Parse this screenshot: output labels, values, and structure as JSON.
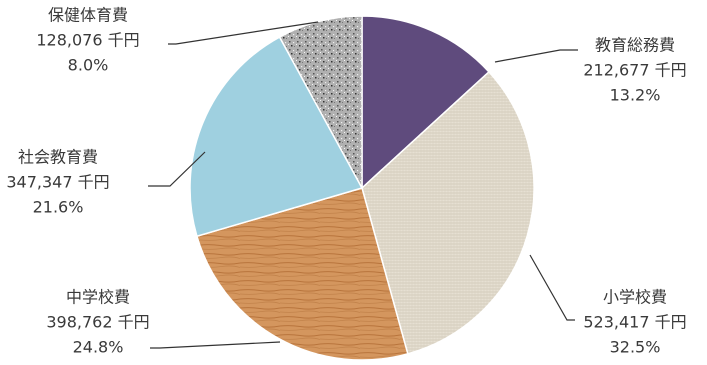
{
  "chart_data": {
    "type": "pie",
    "title": "",
    "unit": "千円",
    "slices": [
      {
        "label": "教育総務費",
        "value": 212677,
        "value_text": "212,677 千円",
        "percent": 13.2,
        "percent_text": "13.2%",
        "fill": "#5f4b7d",
        "texture": "none"
      },
      {
        "label": "小学校費",
        "value": 523417,
        "value_text": "523,417 千円",
        "percent": 32.5,
        "percent_text": "32.5%",
        "fill": "#e3ddd0",
        "texture": "canvas"
      },
      {
        "label": "中学校費",
        "value": 398762,
        "value_text": "398,762 千円",
        "percent": 24.8,
        "percent_text": "24.8%",
        "fill": "#d4965e",
        "texture": "wood"
      },
      {
        "label": "社会教育費",
        "value": 347347,
        "value_text": "347,347 千円",
        "percent": 21.6,
        "percent_text": "21.6%",
        "fill": "#9fd0e0",
        "texture": "none"
      },
      {
        "label": "保健体育費",
        "value": 128076,
        "value_text": "128,076 千円",
        "percent": 8.0,
        "percent_text": "8.0%",
        "fill": "#a9a9a9",
        "texture": "granite"
      }
    ],
    "legend": "none",
    "start_angle_deg": 0,
    "direction": "clockwise"
  }
}
